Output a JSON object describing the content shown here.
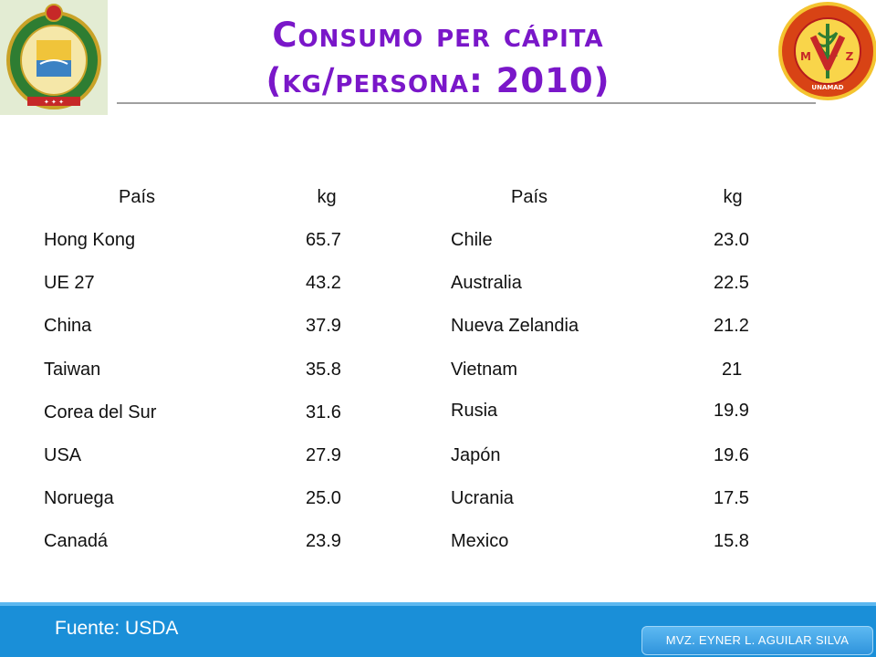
{
  "title": {
    "line1": "Consumo per cápita",
    "line2": "(kg/persona: 2010)"
  },
  "table": {
    "headers": {
      "country_left": "País",
      "kg_left": "kg",
      "country_right": "País",
      "kg_right": "kg"
    },
    "rows": [
      {
        "left_country": "Hong Kong",
        "left_kg": "65.7",
        "right_country": "Chile",
        "right_kg": "23.0"
      },
      {
        "left_country": "UE  27",
        "left_kg": "43.2",
        "right_country": "Australia",
        "right_kg": "22.5"
      },
      {
        "left_country": "China",
        "left_kg": "37.9",
        "right_country": "Nueva Zelandia",
        "right_kg": "21.2"
      },
      {
        "left_country": "Taiwan",
        "left_kg": "35.8",
        "right_country": "Vietnam",
        "right_kg": "21"
      },
      {
        "left_country": "Corea del Sur",
        "left_kg": "31.6",
        "right_country": "Rusia",
        "right_kg": "19.9"
      },
      {
        "left_country": "USA",
        "left_kg": "27.9",
        "right_country": "Japón",
        "right_kg": "19.6"
      },
      {
        "left_country": "Noruega",
        "left_kg": "25.0",
        "right_country": "Ucrania",
        "right_kg": "17.5"
      },
      {
        "left_country": "Canadá",
        "left_kg": "23.9",
        "right_country": "Mexico",
        "right_kg": "15.8"
      }
    ]
  },
  "footer": {
    "source": "Fuente: USDA",
    "author": "MVZ. EYNER L. AGUILAR SILVA"
  },
  "logos": {
    "left": "university-seal",
    "right": "mvz-faculty-seal"
  },
  "colors": {
    "title": "#7a17c9",
    "footer": "#1a8fd8"
  }
}
